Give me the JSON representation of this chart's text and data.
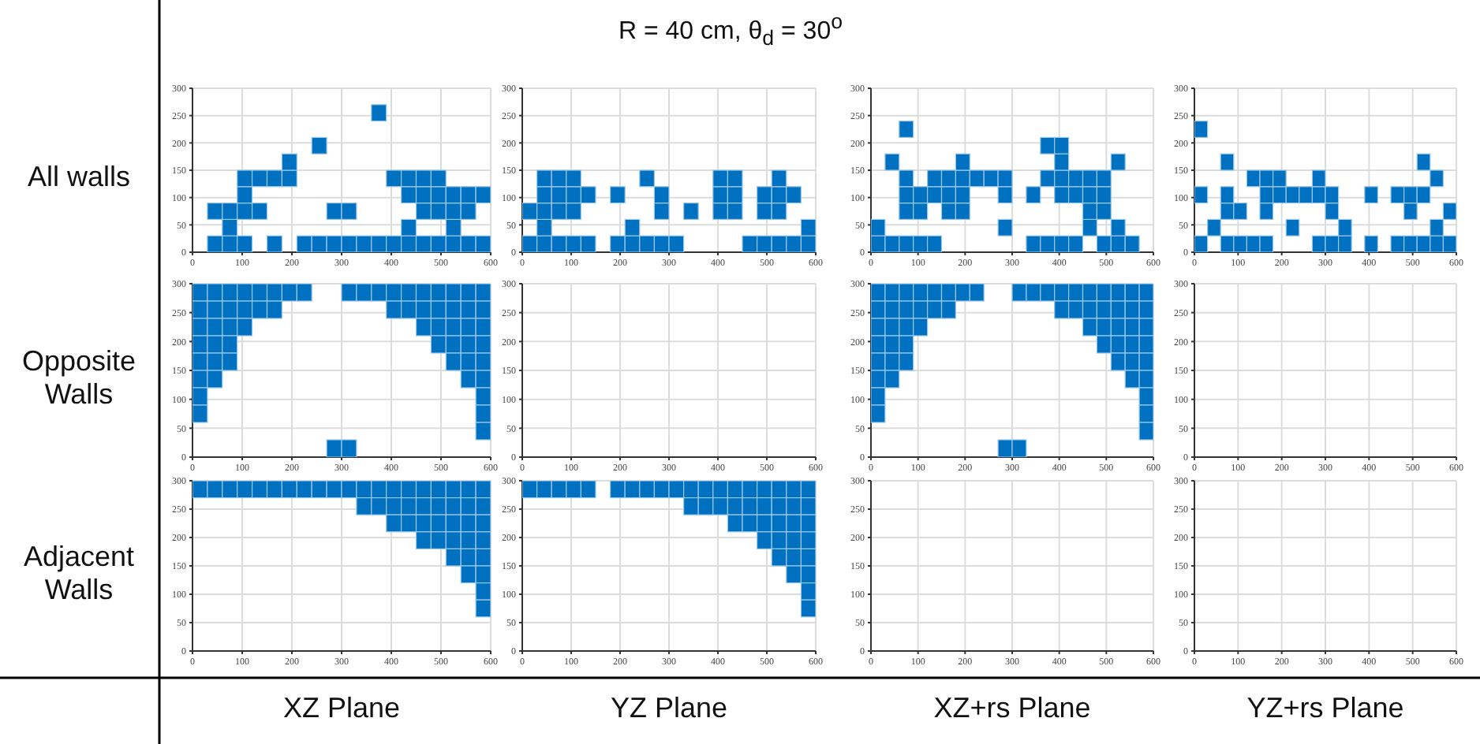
{
  "chart_data": [
    {
      "type": "scatter",
      "ylabel": "All walls",
      "marker": "square",
      "color": "#0070c0",
      "grid": true,
      "xlim": [
        0,
        600
      ],
      "xticks": [
        0,
        100,
        200,
        300,
        400,
        500,
        600
      ],
      "ylim": [
        0,
        300
      ],
      "yticks": [
        0,
        50,
        100,
        150,
        200,
        250,
        300
      ],
      "x": [
        45,
        75,
        105,
        165,
        225,
        255,
        285,
        315,
        345,
        375,
        405,
        435,
        465,
        495,
        525,
        555,
        585,
        75,
        435,
        525,
        45,
        75,
        105,
        135,
        285,
        315,
        465,
        495,
        525,
        555,
        105,
        435,
        465,
        495,
        525,
        555,
        585,
        105,
        135,
        165,
        195,
        405,
        435,
        465,
        495,
        195,
        255,
        375
      ],
      "values": [
        15,
        15,
        15,
        15,
        15,
        15,
        15,
        15,
        15,
        15,
        15,
        15,
        15,
        15,
        15,
        15,
        15,
        45,
        45,
        45,
        75,
        75,
        75,
        75,
        75,
        75,
        75,
        75,
        75,
        75,
        105,
        105,
        105,
        105,
        105,
        105,
        105,
        135,
        135,
        135,
        135,
        135,
        135,
        135,
        135,
        165,
        195,
        255
      ]
    },
    {
      "type": "scatter",
      "title": "R = 40 cm, θ$_{d}$ = 30$^{o}$",
      "marker": "square",
      "color": "#0070c0",
      "grid": true,
      "xlim": [
        0,
        600
      ],
      "xticks": [
        0,
        100,
        200,
        300,
        400,
        500,
        600
      ],
      "ylim": [
        0,
        300
      ],
      "yticks": [
        0,
        50,
        100,
        150,
        200,
        250,
        300
      ],
      "x": [
        15,
        45,
        75,
        105,
        135,
        195,
        225,
        255,
        285,
        315,
        465,
        495,
        525,
        555,
        585,
        45,
        225,
        585,
        15,
        45,
        75,
        105,
        285,
        345,
        405,
        435,
        495,
        525,
        45,
        75,
        105,
        135,
        195,
        285,
        405,
        435,
        495,
        525,
        555,
        45,
        75,
        105,
        255,
        405,
        435,
        525
      ],
      "values": [
        15,
        15,
        15,
        15,
        15,
        15,
        15,
        15,
        15,
        15,
        15,
        15,
        15,
        15,
        15,
        45,
        45,
        45,
        75,
        75,
        75,
        75,
        75,
        75,
        75,
        75,
        75,
        75,
        105,
        105,
        105,
        105,
        105,
        105,
        105,
        105,
        105,
        105,
        105,
        135,
        135,
        135,
        135,
        135,
        135,
        135
      ]
    },
    {
      "type": "scatter",
      "marker": "square",
      "color": "#0070c0",
      "grid": true,
      "xlim": [
        0,
        600
      ],
      "xticks": [
        0,
        100,
        200,
        300,
        400,
        500,
        600
      ],
      "ylim": [
        0,
        300
      ],
      "yticks": [
        0,
        50,
        100,
        150,
        200,
        250,
        300
      ],
      "x": [
        15,
        45,
        75,
        105,
        135,
        345,
        375,
        405,
        435,
        495,
        525,
        555,
        15,
        285,
        465,
        525,
        75,
        105,
        165,
        195,
        465,
        495,
        75,
        105,
        135,
        165,
        195,
        285,
        345,
        405,
        435,
        465,
        495,
        75,
        135,
        165,
        195,
        225,
        255,
        285,
        375,
        405,
        435,
        465,
        495,
        45,
        195,
        405,
        525,
        375,
        405,
        75
      ],
      "values": [
        15,
        15,
        15,
        15,
        15,
        15,
        15,
        15,
        15,
        15,
        15,
        15,
        45,
        45,
        45,
        45,
        75,
        75,
        75,
        75,
        75,
        75,
        105,
        105,
        105,
        105,
        105,
        105,
        105,
        105,
        105,
        105,
        105,
        135,
        135,
        135,
        135,
        135,
        135,
        135,
        135,
        135,
        135,
        135,
        135,
        165,
        165,
        165,
        165,
        195,
        195,
        225
      ]
    },
    {
      "type": "scatter",
      "marker": "square",
      "color": "#0070c0",
      "grid": true,
      "xlim": [
        0,
        600
      ],
      "xticks": [
        0,
        100,
        200,
        300,
        400,
        500,
        600
      ],
      "ylim": [
        0,
        300
      ],
      "yticks": [
        0,
        50,
        100,
        150,
        200,
        250,
        300
      ],
      "x": [
        15,
        75,
        105,
        135,
        165,
        285,
        315,
        345,
        405,
        465,
        495,
        525,
        555,
        585,
        45,
        225,
        345,
        555,
        75,
        105,
        165,
        315,
        495,
        585,
        15,
        75,
        165,
        195,
        225,
        255,
        285,
        315,
        405,
        465,
        495,
        525,
        135,
        165,
        195,
        285,
        555,
        75,
        525,
        15
      ],
      "values": [
        15,
        15,
        15,
        15,
        15,
        15,
        15,
        15,
        15,
        15,
        15,
        15,
        15,
        15,
        45,
        45,
        45,
        45,
        75,
        75,
        75,
        75,
        75,
        75,
        105,
        105,
        105,
        105,
        105,
        105,
        105,
        105,
        105,
        105,
        105,
        105,
        135,
        135,
        135,
        135,
        135,
        165,
        165,
        225
      ]
    },
    {
      "type": "scatter",
      "ylabel": "Opposite Walls",
      "marker": "square",
      "color": "#0070c0",
      "grid": true,
      "xlim": [
        0,
        600
      ],
      "xticks": [
        0,
        100,
        200,
        300,
        400,
        500,
        600
      ],
      "ylim": [
        0,
        300
      ],
      "yticks": [
        0,
        50,
        100,
        150,
        200,
        250,
        300
      ],
      "x": [
        15,
        45,
        75,
        105,
        135,
        165,
        195,
        225,
        315,
        345,
        375,
        405,
        435,
        465,
        495,
        525,
        555,
        585,
        15,
        45,
        75,
        105,
        135,
        165,
        405,
        435,
        465,
        495,
        525,
        555,
        585,
        15,
        45,
        75,
        105,
        465,
        495,
        525,
        555,
        585,
        15,
        45,
        75,
        495,
        525,
        555,
        585,
        15,
        45,
        75,
        525,
        555,
        585,
        15,
        45,
        555,
        585,
        15,
        585,
        15,
        585,
        585,
        285,
        315
      ],
      "values": [
        285,
        285,
        285,
        285,
        285,
        285,
        285,
        285,
        285,
        285,
        285,
        285,
        285,
        285,
        285,
        285,
        285,
        285,
        255,
        255,
        255,
        255,
        255,
        255,
        255,
        255,
        255,
        255,
        255,
        255,
        255,
        225,
        225,
        225,
        225,
        225,
        225,
        225,
        225,
        225,
        195,
        195,
        195,
        195,
        195,
        195,
        195,
        165,
        165,
        165,
        165,
        165,
        165,
        135,
        135,
        135,
        135,
        105,
        105,
        75,
        75,
        45,
        15,
        15
      ]
    },
    {
      "type": "scatter",
      "grid": true,
      "xlim": [
        0,
        600
      ],
      "xticks": [
        0,
        100,
        200,
        300,
        400,
        500,
        600
      ],
      "ylim": [
        0,
        300
      ],
      "yticks": [
        0,
        50,
        100,
        150,
        200,
        250,
        300
      ]
    },
    {
      "type": "scatter",
      "marker": "square",
      "color": "#0070c0",
      "grid": true,
      "xlim": [
        0,
        600
      ],
      "xticks": [
        0,
        100,
        200,
        300,
        400,
        500,
        600
      ],
      "ylim": [
        0,
        300
      ],
      "yticks": [
        0,
        50,
        100,
        150,
        200,
        250,
        300
      ],
      "x": [
        15,
        45,
        75,
        105,
        135,
        165,
        195,
        225,
        315,
        345,
        375,
        405,
        435,
        465,
        495,
        525,
        555,
        585,
        15,
        45,
        75,
        105,
        135,
        165,
        405,
        435,
        465,
        495,
        525,
        555,
        585,
        15,
        45,
        75,
        105,
        465,
        495,
        525,
        555,
        585,
        15,
        45,
        75,
        495,
        525,
        555,
        585,
        15,
        45,
        75,
        525,
        555,
        585,
        15,
        45,
        555,
        585,
        15,
        585,
        15,
        585,
        585,
        285,
        315
      ],
      "values": [
        285,
        285,
        285,
        285,
        285,
        285,
        285,
        285,
        285,
        285,
        285,
        285,
        285,
        285,
        285,
        285,
        285,
        285,
        255,
        255,
        255,
        255,
        255,
        255,
        255,
        255,
        255,
        255,
        255,
        255,
        255,
        225,
        225,
        225,
        225,
        225,
        225,
        225,
        225,
        225,
        195,
        195,
        195,
        195,
        195,
        195,
        195,
        165,
        165,
        165,
        165,
        165,
        165,
        135,
        135,
        135,
        135,
        105,
        105,
        75,
        75,
        45,
        15,
        15
      ]
    },
    {
      "type": "scatter",
      "grid": true,
      "xlim": [
        0,
        600
      ],
      "xticks": [
        0,
        100,
        200,
        300,
        400,
        500,
        600
      ],
      "ylim": [
        0,
        300
      ],
      "yticks": [
        0,
        50,
        100,
        150,
        200,
        250,
        300
      ]
    },
    {
      "type": "scatter",
      "ylabel": "Adjacent Walls",
      "xlabel": "XZ Plane",
      "marker": "square",
      "color": "#0070c0",
      "grid": true,
      "xlim": [
        0,
        600
      ],
      "xticks": [
        0,
        100,
        200,
        300,
        400,
        500,
        600
      ],
      "ylim": [
        0,
        300
      ],
      "yticks": [
        0,
        50,
        100,
        150,
        200,
        250,
        300
      ],
      "x": [
        15,
        45,
        75,
        105,
        135,
        165,
        195,
        225,
        255,
        285,
        315,
        345,
        375,
        405,
        435,
        465,
        495,
        525,
        555,
        585,
        345,
        375,
        405,
        435,
        465,
        495,
        525,
        555,
        585,
        405,
        435,
        465,
        495,
        525,
        555,
        585,
        465,
        495,
        525,
        555,
        585,
        525,
        555,
        585,
        555,
        585,
        585,
        585
      ],
      "values": [
        285,
        285,
        285,
        285,
        285,
        285,
        285,
        285,
        285,
        285,
        285,
        285,
        285,
        285,
        285,
        285,
        285,
        285,
        285,
        285,
        255,
        255,
        255,
        255,
        255,
        255,
        255,
        255,
        255,
        225,
        225,
        225,
        225,
        225,
        225,
        225,
        195,
        195,
        195,
        195,
        195,
        165,
        165,
        165,
        135,
        135,
        105,
        75
      ]
    },
    {
      "type": "scatter",
      "xlabel": "YZ Plane",
      "marker": "square",
      "color": "#0070c0",
      "grid": true,
      "xlim": [
        0,
        600
      ],
      "xticks": [
        0,
        100,
        200,
        300,
        400,
        500,
        600
      ],
      "ylim": [
        0,
        300
      ],
      "yticks": [
        0,
        50,
        100,
        150,
        200,
        250,
        300
      ],
      "x": [
        15,
        45,
        75,
        105,
        135,
        195,
        225,
        255,
        285,
        315,
        345,
        375,
        405,
        435,
        465,
        495,
        525,
        555,
        585,
        345,
        375,
        405,
        435,
        465,
        495,
        525,
        555,
        585,
        435,
        465,
        495,
        525,
        555,
        585,
        495,
        525,
        555,
        585,
        525,
        555,
        585,
        555,
        585,
        585,
        585
      ],
      "values": [
        285,
        285,
        285,
        285,
        285,
        285,
        285,
        285,
        285,
        285,
        285,
        285,
        285,
        285,
        285,
        285,
        285,
        285,
        285,
        255,
        255,
        255,
        255,
        255,
        255,
        255,
        255,
        255,
        225,
        225,
        225,
        225,
        225,
        225,
        195,
        195,
        195,
        195,
        165,
        165,
        165,
        135,
        135,
        105,
        75
      ]
    },
    {
      "type": "scatter",
      "xlabel": "XZ+rs Plane",
      "grid": true,
      "xlim": [
        0,
        600
      ],
      "xticks": [
        0,
        100,
        200,
        300,
        400,
        500,
        600
      ],
      "ylim": [
        0,
        300
      ],
      "yticks": [
        0,
        50,
        100,
        150,
        200,
        250,
        300
      ]
    },
    {
      "type": "scatter",
      "xlabel": "YZ+rs Plane",
      "grid": true,
      "xlim": [
        0,
        600
      ],
      "xticks": [
        0,
        100,
        200,
        300,
        400,
        500,
        600
      ],
      "ylim": [
        0,
        300
      ],
      "yticks": [
        0,
        50,
        100,
        150,
        200,
        250,
        300
      ]
    }
  ]
}
